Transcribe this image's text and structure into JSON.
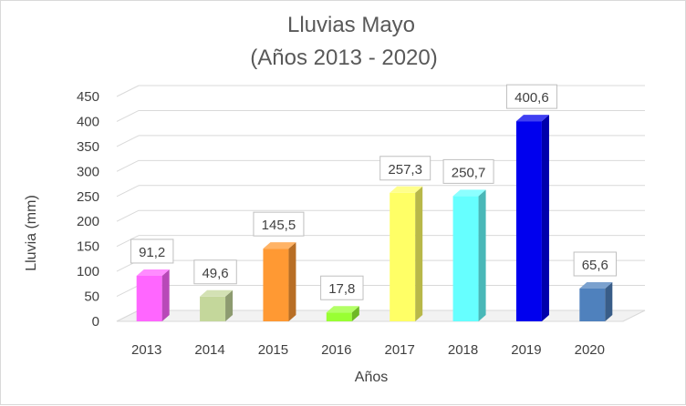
{
  "chart_data": {
    "type": "bar",
    "title": "Lluvias Mayo",
    "subtitle": "(Años 2013 - 2020)",
    "xlabel": "Años",
    "ylabel": "Lluvia (mm)",
    "categories": [
      "2013",
      "2014",
      "2015",
      "2016",
      "2017",
      "2018",
      "2019",
      "2020"
    ],
    "values": [
      91.2,
      49.6,
      145.5,
      17.8,
      257.3,
      250.7,
      400.6,
      65.6
    ],
    "data_labels": [
      "91,2",
      "49,6",
      "145,5",
      "17,8",
      "257,3",
      "250,7",
      "400,6",
      "65,6"
    ],
    "bar_colors": [
      "#ff66ff",
      "#c4d79b",
      "#ff9933",
      "#99ff33",
      "#ffff66",
      "#66ffff",
      "#0000ee",
      "#4f81bd"
    ],
    "ylim": [
      0,
      450
    ],
    "yticks": [
      "0",
      "50",
      "100",
      "150",
      "200",
      "250",
      "300",
      "350",
      "400",
      "450"
    ],
    "grid": true,
    "legend": "none",
    "style": "3d-column"
  }
}
